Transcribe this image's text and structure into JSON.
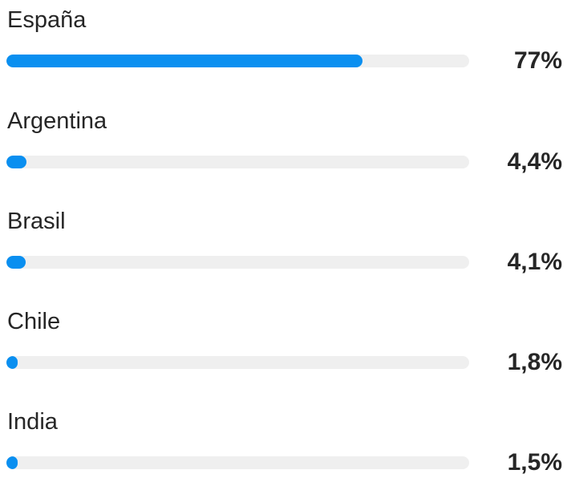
{
  "countries": [
    {
      "name": "España",
      "percent_label": "77%",
      "fill_percent": 77
    },
    {
      "name": "Argentina",
      "percent_label": "4,4%",
      "fill_percent": 4.4
    },
    {
      "name": "Brasil",
      "percent_label": "4,1%",
      "fill_percent": 4.1
    },
    {
      "name": "Chile",
      "percent_label": "1,8%",
      "fill_percent": 1.8
    },
    {
      "name": "India",
      "percent_label": "1,5%",
      "fill_percent": 1.5
    }
  ],
  "colors": {
    "bar_fill": "#0a8ff0",
    "bar_track": "#efefef",
    "text": "#262626"
  }
}
